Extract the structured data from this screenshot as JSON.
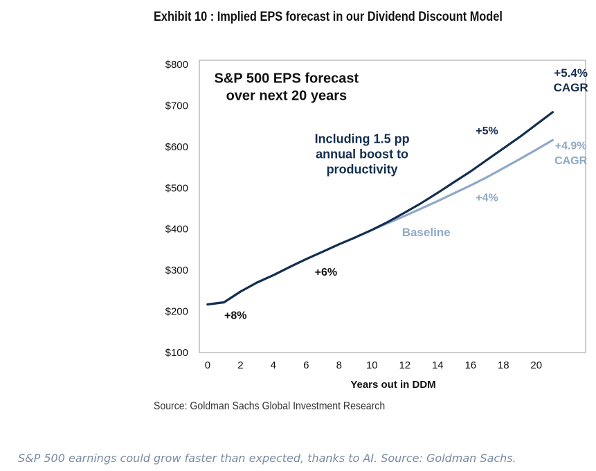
{
  "title": "Exhibit 10 : Implied EPS forecast in our Dividend Discount Model",
  "source": "Source: Goldman Sachs Global Investment Research",
  "caption": "S&P 500 earnings could grow faster than expected, thanks to AI. Source: Goldman Sachs.",
  "colors": {
    "productivity": "#132e4f",
    "baseline": "#8fa8c8",
    "frame": "#9a9a9a"
  },
  "chart_data": {
    "type": "line",
    "title": "S&P 500 EPS forecast over next 20 years",
    "xlabel": "Years out in DDM",
    "ylabel": "",
    "xlim": [
      -0.5,
      23
    ],
    "ylim": [
      100,
      810
    ],
    "x_ticks": [
      0,
      2,
      4,
      6,
      8,
      10,
      12,
      14,
      16,
      18,
      20
    ],
    "y_ticks": [
      100,
      200,
      300,
      400,
      500,
      600,
      700,
      800
    ],
    "y_tick_labels": [
      "$100",
      "$200",
      "$300",
      "$400",
      "$500",
      "$600",
      "$700",
      "$800"
    ],
    "grid": false,
    "series": [
      {
        "name": "Baseline",
        "color": "#8fa8c8",
        "x": [
          0,
          1,
          2,
          3,
          4,
          5,
          6,
          7,
          8,
          9,
          10,
          11,
          12,
          13,
          14,
          15,
          16,
          17,
          18,
          19,
          20,
          21
        ],
        "y": [
          217,
          222,
          248,
          270,
          288,
          308,
          327,
          345,
          363,
          380,
          398,
          415,
          432,
          450,
          468,
          487,
          506,
          526,
          548,
          570,
          593,
          616
        ]
      },
      {
        "name": "Including 1.5 pp annual boost to productivity",
        "color": "#132e4f",
        "x": [
          0,
          1,
          2,
          3,
          4,
          5,
          6,
          7,
          8,
          9,
          10,
          11,
          12,
          13,
          14,
          15,
          16,
          17,
          18,
          19,
          20,
          21
        ],
        "y": [
          217,
          222,
          248,
          270,
          288,
          308,
          327,
          345,
          363,
          380,
          398,
          418,
          440,
          463,
          488,
          514,
          540,
          568,
          596,
          624,
          654,
          684
        ]
      }
    ],
    "annotations": [
      {
        "id": "subtitle-1",
        "text": "S&P 500 EPS forecast",
        "x": 4.8,
        "y": 755,
        "size": 20,
        "color": "#111111"
      },
      {
        "id": "subtitle-2",
        "text": "over next 20 years",
        "x": 4.8,
        "y": 713,
        "size": 20,
        "color": "#111111"
      },
      {
        "id": "productivity-1",
        "text": "Including 1.5 pp",
        "x": 9.4,
        "y": 609,
        "size": 18,
        "color": "#132e4f"
      },
      {
        "id": "productivity-2",
        "text": "annual boost to",
        "x": 9.4,
        "y": 572,
        "size": 18,
        "color": "#132e4f"
      },
      {
        "id": "productivity-3",
        "text": "productivity",
        "x": 9.4,
        "y": 535,
        "size": 18,
        "color": "#132e4f"
      },
      {
        "id": "cagr-high-1",
        "text": "+5.4%",
        "x": 22.1,
        "y": 770,
        "size": 17,
        "color": "#132e4f"
      },
      {
        "id": "cagr-high-2",
        "text": "CAGR",
        "x": 22.1,
        "y": 734,
        "size": 17,
        "color": "#132e4f"
      },
      {
        "id": "growth-5",
        "text": "+5%",
        "x": 17.0,
        "y": 630,
        "size": 16,
        "color": "#132e4f"
      },
      {
        "id": "cagr-low-1",
        "text": "+4.9%",
        "x": 22.1,
        "y": 594,
        "size": 16,
        "color": "#8fa8c8"
      },
      {
        "id": "cagr-low-2",
        "text": "CAGR",
        "x": 22.1,
        "y": 558,
        "size": 16,
        "color": "#8fa8c8"
      },
      {
        "id": "growth-4",
        "text": "+4%",
        "x": 17.0,
        "y": 468,
        "size": 16,
        "color": "#8fa8c8"
      },
      {
        "id": "baseline-label",
        "text": "Baseline",
        "x": 13.3,
        "y": 383,
        "size": 17,
        "color": "#8fa8c8"
      },
      {
        "id": "growth-6",
        "text": "+6%",
        "x": 7.2,
        "y": 287,
        "size": 16,
        "color": "#111111"
      },
      {
        "id": "growth-8",
        "text": "+8%",
        "x": 1.7,
        "y": 182,
        "size": 16,
        "color": "#111111"
      }
    ]
  }
}
